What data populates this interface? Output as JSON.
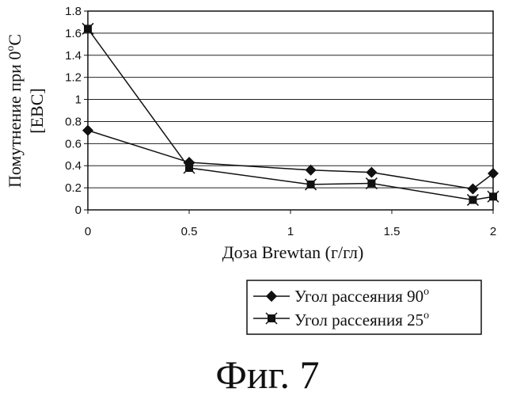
{
  "chart_data": {
    "type": "line",
    "xlabel": "Доза Brewtan (г/гл)",
    "ylabel_line1": "Помутнение при 0",
    "ylabel_deg": "o",
    "ylabel_unit": "C",
    "ylabel_line2": "[EBC]",
    "xlim": [
      0,
      2
    ],
    "ylim": [
      0,
      1.8
    ],
    "x_ticks": [
      "0",
      "0.5",
      "1",
      "1.5",
      "2"
    ],
    "y_ticks": [
      "0",
      "0.2",
      "0.4",
      "0.6",
      "0.8",
      "1",
      "1.2",
      "1.4",
      "1.6",
      "1.8"
    ],
    "grid": "horizontal",
    "legend_position": "bottom-right, outside plot",
    "series": [
      {
        "name": "Угол рассеяния 90",
        "name_sup": "o",
        "marker": "diamond",
        "x": [
          0,
          0.5,
          1.1,
          1.4,
          1.9,
          2.0
        ],
        "y": [
          0.72,
          0.43,
          0.36,
          0.34,
          0.19,
          0.33
        ]
      },
      {
        "name": "Угол рассеяния 25",
        "name_sup": "o",
        "marker": "square-star",
        "x": [
          0,
          0.5,
          1.1,
          1.4,
          1.9,
          2.0
        ],
        "y": [
          1.64,
          0.38,
          0.23,
          0.24,
          0.09,
          0.12
        ]
      }
    ]
  },
  "caption": "Фиг. 7"
}
